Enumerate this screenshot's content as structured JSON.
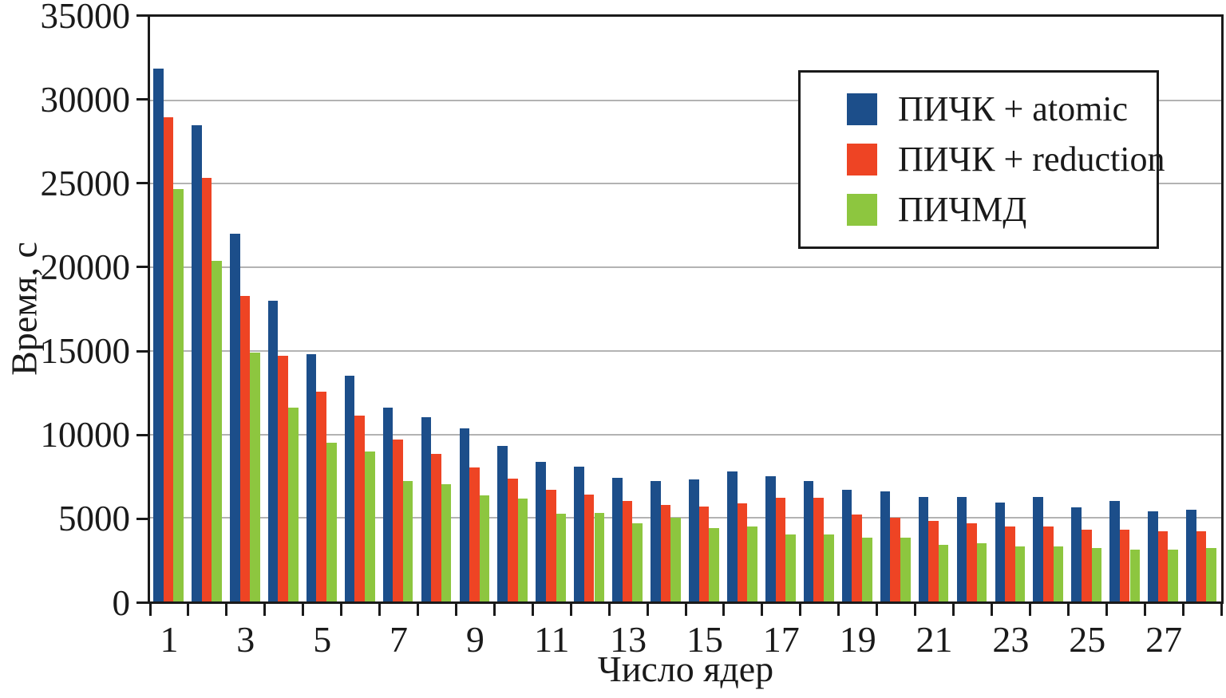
{
  "chart_data": {
    "type": "bar",
    "title": "",
    "xlabel": "Число ядер",
    "ylabel": "Время, с",
    "x": [
      1,
      2,
      3,
      4,
      5,
      6,
      7,
      8,
      9,
      10,
      11,
      12,
      13,
      14,
      15,
      16,
      17,
      18,
      19,
      20,
      21,
      22,
      23,
      24,
      25,
      26,
      27,
      28
    ],
    "x_tick_labels": [
      "1",
      "3",
      "5",
      "7",
      "9",
      "11",
      "13",
      "15",
      "17",
      "19",
      "21",
      "23",
      "25",
      "27"
    ],
    "ylim": [
      0,
      35000
    ],
    "ytick_step": 5000,
    "y_tick_labels": [
      "0",
      "5000",
      "10000",
      "15000",
      "20000",
      "25000",
      "30000",
      "35000"
    ],
    "grid": "horizontal",
    "legend_position": "top-right",
    "series": [
      {
        "name": "ПИЧК + atomic",
        "color": "#1c4e8a",
        "values": [
          31900,
          28500,
          22000,
          18000,
          14800,
          13500,
          11600,
          11050,
          10350,
          9300,
          8350,
          8050,
          7400,
          7200,
          7300,
          7800,
          7500,
          7200,
          6700,
          6600,
          6250,
          6250,
          5900,
          6250,
          5650,
          6000,
          5400,
          5500
        ]
      },
      {
        "name": "ПИЧК + reduction",
        "color": "#ee4424",
        "values": [
          29000,
          25350,
          18300,
          14700,
          12550,
          11150,
          9700,
          8850,
          8000,
          7350,
          6700,
          6400,
          6000,
          5800,
          5700,
          5850,
          6200,
          6200,
          5200,
          5000,
          4800,
          4700,
          4500,
          4500,
          4300,
          4300,
          4200,
          4200
        ]
      },
      {
        "name": "ПИЧМД",
        "color": "#8dc63f",
        "values": [
          24700,
          20400,
          14900,
          11600,
          9500,
          9000,
          7200,
          7000,
          6350,
          6150,
          5250,
          5300,
          4700,
          5000,
          4400,
          4500,
          4000,
          4000,
          3800,
          3800,
          3400,
          3500,
          3300,
          3300,
          3200,
          3100,
          3100,
          3200
        ]
      }
    ]
  },
  "colors": {
    "frame": "#1a1a1a",
    "gridline": "#b3b3b3",
    "background": "#ffffff"
  }
}
